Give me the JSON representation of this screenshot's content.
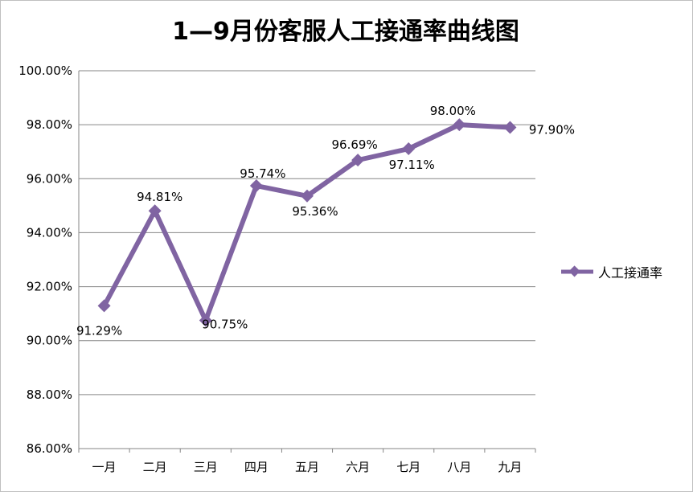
{
  "chart_data": {
    "type": "line",
    "title": "1—9月份客服人工接通率曲线图",
    "categories": [
      "一月",
      "二月",
      "三月",
      "四月",
      "五月",
      "六月",
      "七月",
      "八月",
      "九月"
    ],
    "series": [
      {
        "name": "人工接通率",
        "values": [
          91.29,
          94.81,
          90.75,
          95.74,
          95.36,
          96.69,
          97.11,
          98.0,
          97.9
        ],
        "labels": [
          "91.29%",
          "94.81%",
          "90.75%",
          "95.74%",
          "95.36%",
          "96.69%",
          "97.11%",
          "98.00%",
          "97.90%"
        ],
        "color": "#8064a2"
      }
    ],
    "ylim": [
      86,
      100
    ],
    "yticks": [
      86,
      88,
      90,
      92,
      94,
      96,
      98,
      100
    ],
    "ytick_labels": [
      "86.00%",
      "88.00%",
      "90.00%",
      "92.00%",
      "94.00%",
      "96.00%",
      "98.00%",
      "100.00%"
    ],
    "grid": true,
    "legend": "right"
  }
}
